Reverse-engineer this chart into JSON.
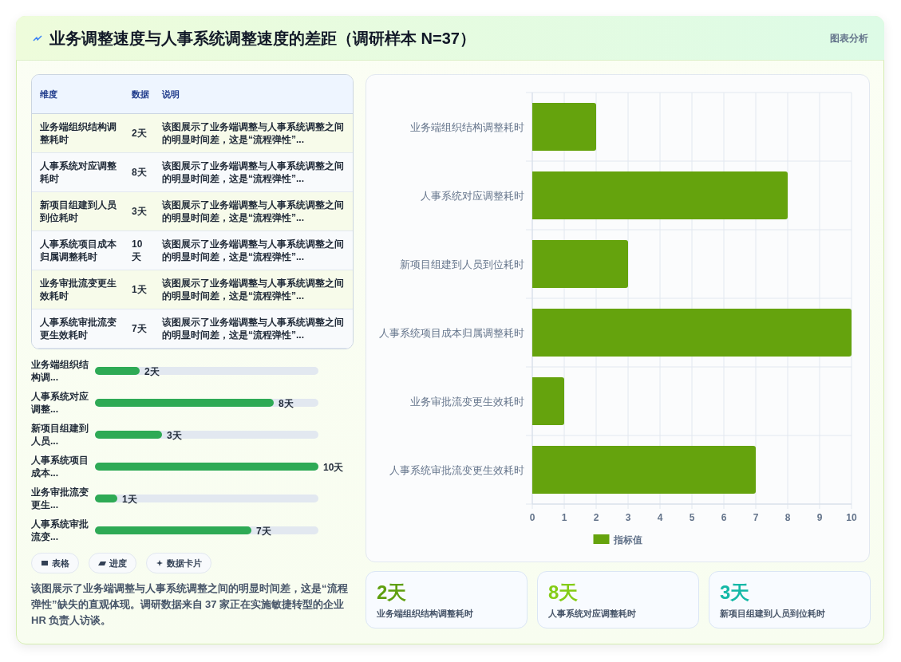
{
  "chart_data": [
    {
      "type": "other",
      "title": "业务调整速度与人事系统调整速度的差距（调研样本 N=37）",
      "annotations": [
        "图表分析"
      ],
      "categories": [
        "维度",
        "数据",
        "说明"
      ],
      "cell_labels": [
        [
          "业务端组织结构调整耗时",
          "2天",
          "该图展示了业务端调整与人事系统调整之间的明显时间差，这是“流程弹性”..."
        ],
        [
          "人事系统对应调整耗时",
          "8天",
          "该图展示了业务端调整与人事系统调整之间的明显时间差，这是“流程弹性”..."
        ],
        [
          "新项目组建到人员到位耗时",
          "3天",
          "该图展示了业务端调整与人事系统调整之间的明显时间差，这是“流程弹性”..."
        ],
        [
          "人事系统项目成本归属调整耗时",
          "10天",
          "该图展示了业务端调整与人事系统调整之间的明显时间差，这是“流程弹性”..."
        ],
        [
          "业务审批流变更生效耗时",
          "1天",
          "该图展示了业务端调整与人事系统调整之间的明显时间差，这是“流程弹性”..."
        ],
        [
          "人事系统审批流变更生效耗时",
          "7天",
          "该图展示了业务端调整与人事系统调整之间的明显时间差，这是“流程弹性”..."
        ]
      ]
    },
    {
      "type": "bar",
      "orientation": "horizontal",
      "categories": [
        "业务端组织结构调...",
        "人事系统对应调整...",
        "新项目组建到人员...",
        "人事系统项目成本...",
        "业务审批流变更生...",
        "人事系统审批流变..."
      ],
      "values": [
        2,
        8,
        3,
        10,
        1,
        7
      ],
      "value_labels": [
        "2天",
        "8天",
        "3天",
        "10天",
        "1天",
        "7天"
      ],
      "color": "#2eaa55"
    },
    {
      "type": "other",
      "categories": [
        "表格",
        "进度",
        "数据卡片"
      ],
      "annotations": [
        "该图展示了业务端调整与人事系统调整之间的明显时间差，这是“流程弹性”缺失的直观体现。调研数据来自 37 家正在实施敏捷转型的企业 HR 负责人访谈。"
      ]
    },
    {
      "type": "bar",
      "orientation": "horizontal",
      "categories": [
        "业务端组织结构调整耗时",
        "人事系统对应调整耗时",
        "新项目组建到人员到位耗时",
        "人事系统项目成本归属调整耗时",
        "业务审批流变更生效耗时",
        "人事系统审批流变更生效耗时"
      ],
      "series": [
        {
          "name": "指标值",
          "color": "#65a30d",
          "values": [
            2,
            8,
            3,
            10,
            1,
            7
          ]
        }
      ],
      "xlim": [
        0,
        10
      ],
      "xticks": [
        0,
        1,
        2,
        3,
        4,
        5,
        6,
        7,
        8,
        9,
        10
      ],
      "grid": true,
      "legend": "bottom"
    },
    {
      "type": "other",
      "categories": [
        "业务端组织结构调整耗时",
        "人事系统对应调整耗时",
        "新项目组建到人员到位耗时"
      ],
      "value_labels": [
        "2天",
        "8天",
        "3天"
      ]
    }
  ]
}
